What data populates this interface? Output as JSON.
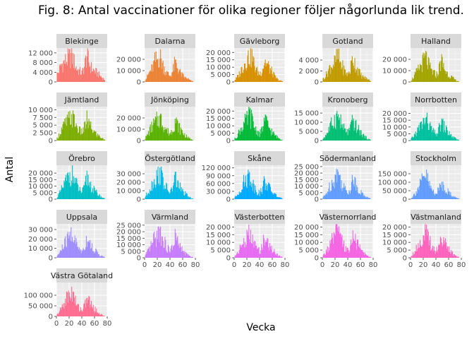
{
  "chart_data": {
    "type": "bar",
    "title": "Fig. 8: Antal vaccinationer för olika regioner följer någorlunda lik trend.",
    "xlabel": "Vecka",
    "ylabel": "Antal",
    "xlim": [
      0,
      80
    ],
    "x_ticks": [
      0,
      20,
      40,
      60,
      80
    ],
    "x_tick_labels": [
      "0",
      "20",
      "40",
      "60",
      "80"
    ],
    "grid": true,
    "legend": "none",
    "profile_weeks": [
      0,
      4,
      8,
      12,
      16,
      20,
      24,
      28,
      32,
      36,
      40,
      44,
      48,
      52,
      56,
      60,
      64,
      68,
      72,
      76
    ],
    "panels": [
      {
        "name": "Blekinge",
        "color": "#F8766D",
        "ymax": 14000,
        "ticks": [
          0,
          4000,
          8000,
          12000
        ],
        "tick_labels": [
          "0",
          "4 000",
          "8 000",
          "12 000"
        ],
        "profile": [
          3000,
          5000,
          8000,
          9000,
          10000,
          11000,
          12000,
          9000,
          6000,
          5000,
          4000,
          7000,
          12500,
          8000,
          6000,
          5000,
          4000,
          3000,
          2000,
          1000
        ]
      },
      {
        "name": "Dalarna",
        "color": "#EB8335",
        "ymax": 30000,
        "ticks": [
          0,
          10000,
          20000
        ],
        "tick_labels": [
          "0",
          "10 000",
          "20 000"
        ],
        "profile": [
          1000,
          5000,
          10000,
          13000,
          20000,
          22000,
          25000,
          18000,
          12000,
          8000,
          6000,
          10000,
          19000,
          14000,
          9000,
          6000,
          4000,
          3000,
          1500,
          500
        ]
      },
      {
        "name": "Gävleborg",
        "color": "#D89000",
        "ymax": 23000,
        "ticks": [
          0,
          5000,
          10000,
          15000,
          20000
        ],
        "tick_labels": [
          "0",
          "5 000",
          "10 000",
          "15 000",
          "20 000"
        ],
        "profile": [
          1000,
          3000,
          6000,
          10000,
          14000,
          17000,
          20000,
          19000,
          12000,
          8000,
          6000,
          9000,
          16000,
          13000,
          10000,
          7000,
          4000,
          2000,
          1000,
          500
        ]
      },
      {
        "name": "Gotland",
        "color": "#C09B00",
        "ymax": 6200,
        "ticks": [
          0,
          2000,
          4000
        ],
        "tick_labels": [
          "0",
          "2 000",
          "4 000"
        ],
        "profile": [
          500,
          1000,
          2000,
          3000,
          3500,
          4000,
          5200,
          4000,
          3000,
          2000,
          1500,
          2500,
          5000,
          3500,
          2500,
          1500,
          1000,
          800,
          500,
          200
        ]
      },
      {
        "name": "Halland",
        "color": "#A3A500",
        "ymax": 30000,
        "ticks": [
          0,
          10000,
          20000
        ],
        "tick_labels": [
          "0",
          "10 000",
          "20 000"
        ],
        "profile": [
          1000,
          4000,
          8000,
          12000,
          16000,
          20000,
          24000,
          17000,
          12000,
          9000,
          7000,
          10000,
          22000,
          15000,
          10000,
          7000,
          5000,
          3000,
          1500,
          500
        ]
      },
      {
        "name": "Jämtland",
        "color": "#7CAE00",
        "ymax": 11000,
        "ticks": [
          0,
          2500,
          5000,
          7500,
          10000
        ],
        "tick_labels": [
          "0",
          "2 500",
          "5 000",
          "7 500",
          "10 000"
        ],
        "profile": [
          500,
          2000,
          4000,
          5500,
          6500,
          7500,
          8500,
          7000,
          5000,
          3500,
          3000,
          4500,
          7500,
          5500,
          4000,
          3000,
          2000,
          1500,
          800,
          300
        ]
      },
      {
        "name": "Jönköping",
        "color": "#5BB300",
        "ymax": 30000,
        "ticks": [
          0,
          10000,
          20000
        ],
        "tick_labels": [
          "0",
          "10 000",
          "20 000"
        ],
        "profile": [
          1500,
          5000,
          10000,
          14000,
          17000,
          20000,
          22000,
          18000,
          13000,
          9000,
          7000,
          11000,
          20000,
          15000,
          11000,
          8000,
          5000,
          3000,
          1500,
          500
        ]
      },
      {
        "name": "Kalmar",
        "color": "#00BA38",
        "ymax": 23000,
        "ticks": [
          0,
          5000,
          10000,
          15000,
          20000
        ],
        "tick_labels": [
          "0",
          "5 000",
          "10 000",
          "15 000",
          "20 000"
        ],
        "profile": [
          1000,
          3000,
          7000,
          10000,
          13000,
          15000,
          20000,
          15000,
          10000,
          7000,
          5000,
          8000,
          16000,
          12000,
          9000,
          6000,
          4000,
          2500,
          1200,
          400
        ]
      },
      {
        "name": "Kronoberg",
        "color": "#00BF74",
        "ymax": 18500,
        "ticks": [
          0,
          5000,
          10000,
          15000
        ],
        "tick_labels": [
          "0",
          "5 000",
          "10 000",
          "15 000"
        ],
        "profile": [
          800,
          2500,
          5000,
          8000,
          11000,
          13000,
          15000,
          12000,
          8000,
          6000,
          5000,
          7000,
          12000,
          9000,
          7000,
          5000,
          3500,
          2000,
          1000,
          300
        ]
      },
      {
        "name": "Norrbotten",
        "color": "#00C19F",
        "ymax": 25000,
        "ticks": [
          0,
          5000,
          10000,
          15000,
          20000
        ],
        "tick_labels": [
          "0",
          "5 000",
          "10 000",
          "15 000",
          "20 000"
        ],
        "profile": [
          1000,
          3000,
          6000,
          9000,
          12000,
          15000,
          17000,
          14000,
          10000,
          7000,
          5000,
          8000,
          15000,
          12000,
          9000,
          6000,
          4000,
          2500,
          1200,
          400
        ]
      },
      {
        "name": "Örebro",
        "color": "#00BFC4",
        "ymax": 26000,
        "ticks": [
          0,
          5000,
          10000,
          15000,
          20000
        ],
        "tick_labels": [
          "0",
          "5 000",
          "10 000",
          "15 000",
          "20 000"
        ],
        "profile": [
          1000,
          4000,
          8000,
          12000,
          16000,
          20000,
          22000,
          17000,
          12000,
          8000,
          6000,
          9000,
          19000,
          14000,
          10000,
          7000,
          5000,
          3000,
          1500,
          500
        ]
      },
      {
        "name": "Östergötland",
        "color": "#00B8E7",
        "ymax": 40000,
        "ticks": [
          0,
          10000,
          20000,
          30000
        ],
        "tick_labels": [
          "0",
          "10 000",
          "20 000",
          "30 000"
        ],
        "profile": [
          2000,
          7000,
          14000,
          20000,
          25000,
          30000,
          35000,
          27000,
          18000,
          12000,
          9000,
          14000,
          28000,
          21000,
          15000,
          10000,
          7000,
          4000,
          2000,
          800
        ]
      },
      {
        "name": "Skåne",
        "color": "#00A9FF",
        "ymax": 130000,
        "ticks": [
          0,
          30000,
          60000,
          90000,
          120000
        ],
        "tick_labels": [
          "0",
          "30 000",
          "60 000",
          "90 000",
          "120 000"
        ],
        "profile": [
          5000,
          15000,
          35000,
          55000,
          75000,
          90000,
          100000,
          75000,
          50000,
          35000,
          25000,
          40000,
          80000,
          60000,
          45000,
          30000,
          20000,
          12000,
          6000,
          2000
        ]
      },
      {
        "name": "Södermanland",
        "color": "#619CFF",
        "ymax": 26000,
        "ticks": [
          0,
          5000,
          10000,
          15000,
          20000,
          25000
        ],
        "tick_labels": [
          "0",
          "5 000",
          "10 000",
          "15 000",
          "20 000",
          "25 000"
        ],
        "profile": [
          1000,
          3000,
          7000,
          11000,
          15000,
          19000,
          23000,
          17000,
          12000,
          8000,
          6000,
          9000,
          18000,
          13000,
          9000,
          6000,
          4000,
          2500,
          1200,
          400
        ]
      },
      {
        "name": "Stockholm",
        "color": "#619CFF",
        "ymax": 200000,
        "ticks": [
          0,
          50000,
          100000,
          150000
        ],
        "tick_labels": [
          "0",
          "50 000",
          "100 000",
          "150 000"
        ],
        "profile": [
          5000,
          20000,
          45000,
          70000,
          100000,
          130000,
          160000,
          110000,
          70000,
          50000,
          40000,
          55000,
          110000,
          85000,
          65000,
          45000,
          30000,
          18000,
          9000,
          3000
        ]
      },
      {
        "name": "Uppsala",
        "color": "#9F8CFF",
        "ymax": 36000,
        "ticks": [
          0,
          10000,
          20000,
          30000
        ],
        "tick_labels": [
          "0",
          "10 000",
          "20 000",
          "30 000"
        ],
        "profile": [
          1500,
          5000,
          10000,
          15000,
          20000,
          24000,
          29000,
          22000,
          15000,
          10000,
          8000,
          12000,
          24000,
          18000,
          13000,
          9000,
          6000,
          3500,
          1800,
          600
        ]
      },
      {
        "name": "Värmland",
        "color": "#C77CFF",
        "ymax": 26000,
        "ticks": [
          0,
          5000,
          10000,
          15000,
          20000,
          25000
        ],
        "tick_labels": [
          "0",
          "5 000",
          "10 000",
          "15 000",
          "20 000",
          "25 000"
        ],
        "profile": [
          1000,
          4000,
          8000,
          12000,
          16000,
          19000,
          23000,
          17000,
          12000,
          8000,
          6000,
          9000,
          18000,
          13000,
          9000,
          6000,
          4000,
          2500,
          1200,
          400
        ]
      },
      {
        "name": "Västerbotten",
        "color": "#E76BF3",
        "ymax": 22000,
        "ticks": [
          0,
          5000,
          10000,
          15000,
          20000
        ],
        "tick_labels": [
          "0",
          "5 000",
          "10 000",
          "15 000",
          "20 000"
        ],
        "profile": [
          1000,
          3000,
          6000,
          9000,
          12000,
          14000,
          17000,
          13000,
          9000,
          7000,
          5000,
          8000,
          15000,
          11000,
          8000,
          6000,
          4000,
          2500,
          1200,
          400
        ]
      },
      {
        "name": "Västernorrland",
        "color": "#F564E3",
        "ymax": 22000,
        "ticks": [
          0,
          5000,
          10000,
          15000,
          20000
        ],
        "tick_labels": [
          "0",
          "5 000",
          "10 000",
          "15 000",
          "20 000"
        ],
        "profile": [
          1000,
          3000,
          6000,
          9000,
          13000,
          16000,
          20000,
          15000,
          10000,
          7000,
          5000,
          8000,
          16000,
          12000,
          9000,
          6000,
          4000,
          2500,
          1200,
          400
        ]
      },
      {
        "name": "Västmanland",
        "color": "#FF62BC",
        "ymax": 22000,
        "ticks": [
          0,
          5000,
          10000,
          15000,
          20000
        ],
        "tick_labels": [
          "0",
          "5 000",
          "10 000",
          "15 000",
          "20 000"
        ],
        "profile": [
          1000,
          3000,
          6000,
          9000,
          12000,
          15000,
          18000,
          14000,
          10000,
          7000,
          5000,
          8000,
          16000,
          12000,
          9000,
          6000,
          4000,
          2500,
          1200,
          400
        ]
      },
      {
        "name": "Västra Götaland",
        "color": "#FF6C91",
        "ymax": 160000,
        "ticks": [
          0,
          50000,
          100000
        ],
        "tick_labels": [
          "0",
          "50 000",
          "100 000"
        ],
        "profile": [
          5000,
          20000,
          45000,
          70000,
          95000,
          110000,
          130000,
          95000,
          60000,
          45000,
          35000,
          50000,
          100000,
          75000,
          55000,
          40000,
          25000,
          15000,
          8000,
          2500
        ]
      }
    ]
  }
}
